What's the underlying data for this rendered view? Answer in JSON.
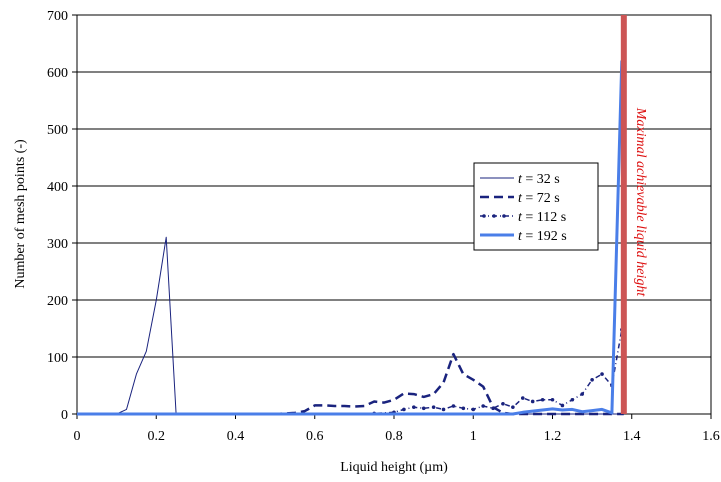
{
  "chart_data": {
    "type": "line",
    "xlabel": "Liquid height (µm)",
    "ylabel": "Number of mesh points (-)",
    "xlim": [
      0,
      1.6
    ],
    "ylim": [
      0,
      700
    ],
    "x_ticks": [
      "0",
      "0.2",
      "0.4",
      "0.6",
      "0.8",
      "1",
      "1.2",
      "1.4",
      "1.6"
    ],
    "y_ticks": [
      "0",
      "100",
      "200",
      "300",
      "400",
      "500",
      "600",
      "700"
    ],
    "grid": "horizontal",
    "legend_position": "right",
    "series": [
      {
        "name": "t =  32 s",
        "legend_prefix": "t",
        "legend_suffix": " =  32 s",
        "style": "thin-solid",
        "color": "#1a237e",
        "points": [
          [
            0,
            0
          ],
          [
            0.025,
            0
          ],
          [
            0.05,
            0
          ],
          [
            0.075,
            0
          ],
          [
            0.1,
            0
          ],
          [
            0.125,
            8
          ],
          [
            0.15,
            70
          ],
          [
            0.175,
            110
          ],
          [
            0.2,
            200
          ],
          [
            0.225,
            310
          ],
          [
            0.25,
            0
          ],
          [
            0.275,
            0
          ],
          [
            0.3,
            0
          ],
          [
            0.4,
            0
          ],
          [
            0.5,
            0
          ],
          [
            0.6,
            0
          ],
          [
            0.8,
            0
          ],
          [
            1.0,
            0
          ],
          [
            1.2,
            0
          ],
          [
            1.38,
            0
          ]
        ]
      },
      {
        "name": "t =  72 s",
        "legend_prefix": "t",
        "legend_suffix": " =  72 s",
        "style": "thick-dash",
        "color": "#1a237e",
        "points": [
          [
            0,
            0
          ],
          [
            0.5,
            0
          ],
          [
            0.55,
            2
          ],
          [
            0.575,
            5
          ],
          [
            0.6,
            15
          ],
          [
            0.625,
            15
          ],
          [
            0.65,
            14
          ],
          [
            0.675,
            14
          ],
          [
            0.7,
            13
          ],
          [
            0.725,
            14
          ],
          [
            0.75,
            22
          ],
          [
            0.775,
            20
          ],
          [
            0.8,
            25
          ],
          [
            0.825,
            36
          ],
          [
            0.85,
            35
          ],
          [
            0.875,
            30
          ],
          [
            0.9,
            35
          ],
          [
            0.925,
            55
          ],
          [
            0.95,
            105
          ],
          [
            0.975,
            70
          ],
          [
            1.0,
            60
          ],
          [
            1.025,
            48
          ],
          [
            1.05,
            12
          ],
          [
            1.075,
            2
          ],
          [
            1.1,
            0
          ],
          [
            1.2,
            0
          ],
          [
            1.38,
            0
          ]
        ]
      },
      {
        "name": "t = 112 s",
        "legend_prefix": "t",
        "legend_suffix": " = 112 s",
        "style": "dash-dot-markers",
        "color": "#1a237e",
        "points": [
          [
            0,
            0
          ],
          [
            0.7,
            0
          ],
          [
            0.75,
            1
          ],
          [
            0.8,
            3
          ],
          [
            0.825,
            8
          ],
          [
            0.85,
            12
          ],
          [
            0.875,
            10
          ],
          [
            0.9,
            12
          ],
          [
            0.925,
            8
          ],
          [
            0.95,
            14
          ],
          [
            0.975,
            10
          ],
          [
            1.0,
            8
          ],
          [
            1.025,
            14
          ],
          [
            1.05,
            10
          ],
          [
            1.075,
            18
          ],
          [
            1.1,
            12
          ],
          [
            1.125,
            28
          ],
          [
            1.15,
            22
          ],
          [
            1.175,
            25
          ],
          [
            1.2,
            25
          ],
          [
            1.225,
            15
          ],
          [
            1.25,
            25
          ],
          [
            1.275,
            35
          ],
          [
            1.3,
            60
          ],
          [
            1.325,
            70
          ],
          [
            1.35,
            50
          ],
          [
            1.375,
            148
          ]
        ]
      },
      {
        "name": "t = 192 s",
        "legend_prefix": "t",
        "legend_suffix": " = 192 s",
        "style": "thick-solid",
        "color": "#4a7ee8",
        "points": [
          [
            0,
            0
          ],
          [
            1.1,
            0
          ],
          [
            1.125,
            3
          ],
          [
            1.15,
            5
          ],
          [
            1.175,
            7
          ],
          [
            1.2,
            9
          ],
          [
            1.225,
            7
          ],
          [
            1.25,
            8
          ],
          [
            1.275,
            4
          ],
          [
            1.3,
            6
          ],
          [
            1.325,
            8
          ],
          [
            1.35,
            2
          ],
          [
            1.375,
            620
          ]
        ]
      }
    ],
    "reference_line": {
      "x": 1.38,
      "color": "#cc5555",
      "label": "Maximal achievable liquid height"
    }
  }
}
